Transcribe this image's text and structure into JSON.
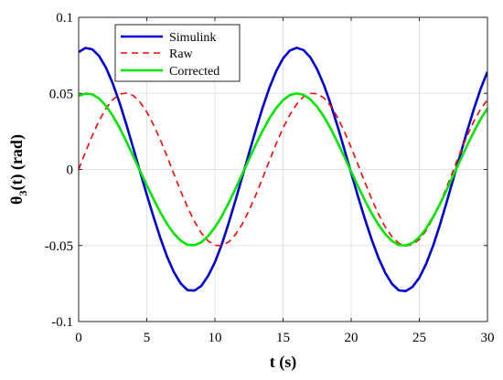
{
  "chart_data": {
    "type": "line",
    "xlabel": "t (s)",
    "ylabel": {
      "main": "θ",
      "sub": "3",
      "rest": "(t) (rad)"
    },
    "xlim": [
      0,
      30
    ],
    "ylim": [
      -0.1,
      0.1
    ],
    "x_ticks": [
      "0",
      "5",
      "10",
      "15",
      "20",
      "25",
      "30"
    ],
    "y_ticks": [
      "-0.1",
      "-0.05",
      "0",
      "0.05",
      "0.1"
    ],
    "grid": true,
    "legend_position": "top-left",
    "series": [
      {
        "name": "Simulink",
        "color": "#0000d6",
        "style": "solid",
        "x": [
          0,
          0.5,
          1,
          1.5,
          2,
          2.5,
          3,
          3.5,
          4,
          4.5,
          5,
          5.5,
          6,
          6.5,
          7,
          7.5,
          8,
          8.5,
          9,
          9.5,
          10,
          10.5,
          11,
          11.5,
          12,
          12.5,
          13,
          13.5,
          14,
          14.5,
          15,
          15.5,
          16,
          16.5,
          17,
          17.5,
          18,
          18.5,
          19,
          19.5,
          20,
          20.5,
          21,
          21.5,
          22,
          22.5,
          23,
          23.5,
          24,
          24.5,
          25,
          25.5,
          26,
          26.5,
          27,
          27.5,
          28,
          28.5,
          29,
          29.5,
          30
        ],
        "y": [
          0.0772,
          0.0799,
          0.079,
          0.0746,
          0.067,
          0.0566,
          0.0439,
          0.0296,
          0.0143,
          -0.0012,
          -0.0166,
          -0.0313,
          -0.0452,
          -0.0576,
          -0.0677,
          -0.0751,
          -0.0794,
          -0.0796,
          -0.0766,
          -0.07,
          -0.061,
          -0.0494,
          -0.0355,
          -0.0206,
          -0.005,
          0.0106,
          0.026,
          0.0406,
          0.0537,
          0.0647,
          0.073,
          0.0782,
          0.08,
          0.0785,
          0.0737,
          0.0659,
          0.0555,
          0.0428,
          0.0285,
          0.0132,
          -0.0023,
          -0.0177,
          -0.0324,
          -0.046,
          -0.0581,
          -0.068,
          -0.0753,
          -0.0795,
          -0.08,
          -0.0772,
          -0.0712,
          -0.0621,
          -0.0505,
          -0.0368,
          -0.0217,
          -0.0061,
          0.0095,
          0.0249,
          0.0396,
          0.053,
          0.0642
        ]
      },
      {
        "name": "Raw",
        "color": "#ff0000",
        "style": "dashed",
        "x": [
          0,
          0.5,
          1,
          1.5,
          2,
          2.5,
          3,
          3.5,
          4,
          4.5,
          5,
          5.5,
          6,
          6.5,
          7,
          7.5,
          8,
          8.5,
          9,
          9.5,
          10,
          10.5,
          11,
          11.5,
          12,
          12.5,
          13,
          13.5,
          14,
          14.5,
          15,
          15.5,
          16,
          16.5,
          17,
          17.5,
          18,
          18.5,
          19,
          19.5,
          20,
          20.5,
          21,
          21.5,
          22,
          22.5,
          23,
          23.5,
          24,
          24.5,
          25,
          25.5,
          26,
          26.5,
          27,
          27.5,
          28,
          28.5,
          29,
          29.5,
          30
        ],
        "y": [
          0.0,
          0.0115,
          0.0223,
          0.032,
          0.04,
          0.0459,
          0.0494,
          0.0503,
          0.0486,
          0.0443,
          0.0378,
          0.0293,
          0.0193,
          0.0083,
          -0.0032,
          -0.0145,
          -0.025,
          -0.0342,
          -0.0418,
          -0.047,
          -0.0499,
          -0.0501,
          -0.0478,
          -0.0429,
          -0.036,
          -0.0271,
          -0.0168,
          -0.0057,
          0.0058,
          0.017,
          0.0272,
          0.036,
          0.043,
          0.0478,
          0.05,
          0.0498,
          0.047,
          0.0417,
          0.0342,
          0.0249,
          0.0143,
          0.0032,
          -0.0083,
          -0.0193,
          -0.0293,
          -0.0378,
          -0.0443,
          -0.0486,
          -0.0503,
          -0.0494,
          -0.046,
          -0.0402,
          -0.0322,
          -0.0226,
          -0.0118,
          -0.0004,
          0.0111,
          0.0219,
          0.0316,
          0.0397,
          0.0457
        ]
      },
      {
        "name": "Corrected",
        "color": "#00e600",
        "style": "solid",
        "x": [
          0,
          0.5,
          1,
          1.5,
          2,
          2.5,
          3,
          3.5,
          4,
          4.5,
          5,
          5.5,
          6,
          6.5,
          7,
          7.5,
          8,
          8.5,
          9,
          9.5,
          10,
          10.5,
          11,
          11.5,
          12,
          12.5,
          13,
          13.5,
          14,
          14.5,
          15,
          15.5,
          16,
          16.5,
          17,
          17.5,
          18,
          18.5,
          19,
          19.5,
          20,
          20.5,
          21,
          21.5,
          22,
          22.5,
          23,
          23.5,
          24,
          24.5,
          25,
          25.5,
          26,
          26.5,
          27,
          27.5,
          28,
          28.5,
          29,
          29.5,
          30
        ],
        "y": [
          0.0483,
          0.0499,
          0.0494,
          0.0466,
          0.0419,
          0.0354,
          0.0274,
          0.0185,
          0.0089,
          -0.0008,
          -0.0104,
          -0.0196,
          -0.0283,
          -0.036,
          -0.0423,
          -0.0469,
          -0.0496,
          -0.0498,
          -0.0479,
          -0.0438,
          -0.0381,
          -0.0309,
          -0.0222,
          -0.0129,
          -0.0031,
          0.0066,
          0.0163,
          0.0254,
          0.0336,
          0.0404,
          0.0456,
          0.0489,
          0.05,
          0.0491,
          0.0461,
          0.0412,
          0.0347,
          0.0268,
          0.0178,
          0.0083,
          -0.0014,
          -0.0111,
          -0.0203,
          -0.0288,
          -0.0363,
          -0.0425,
          -0.0471,
          -0.0497,
          -0.05,
          -0.0483,
          -0.0445,
          -0.0388,
          -0.0316,
          -0.023,
          -0.0136,
          -0.0038,
          0.0059,
          0.0156,
          0.0247,
          0.0331,
          0.0401
        ]
      }
    ]
  }
}
